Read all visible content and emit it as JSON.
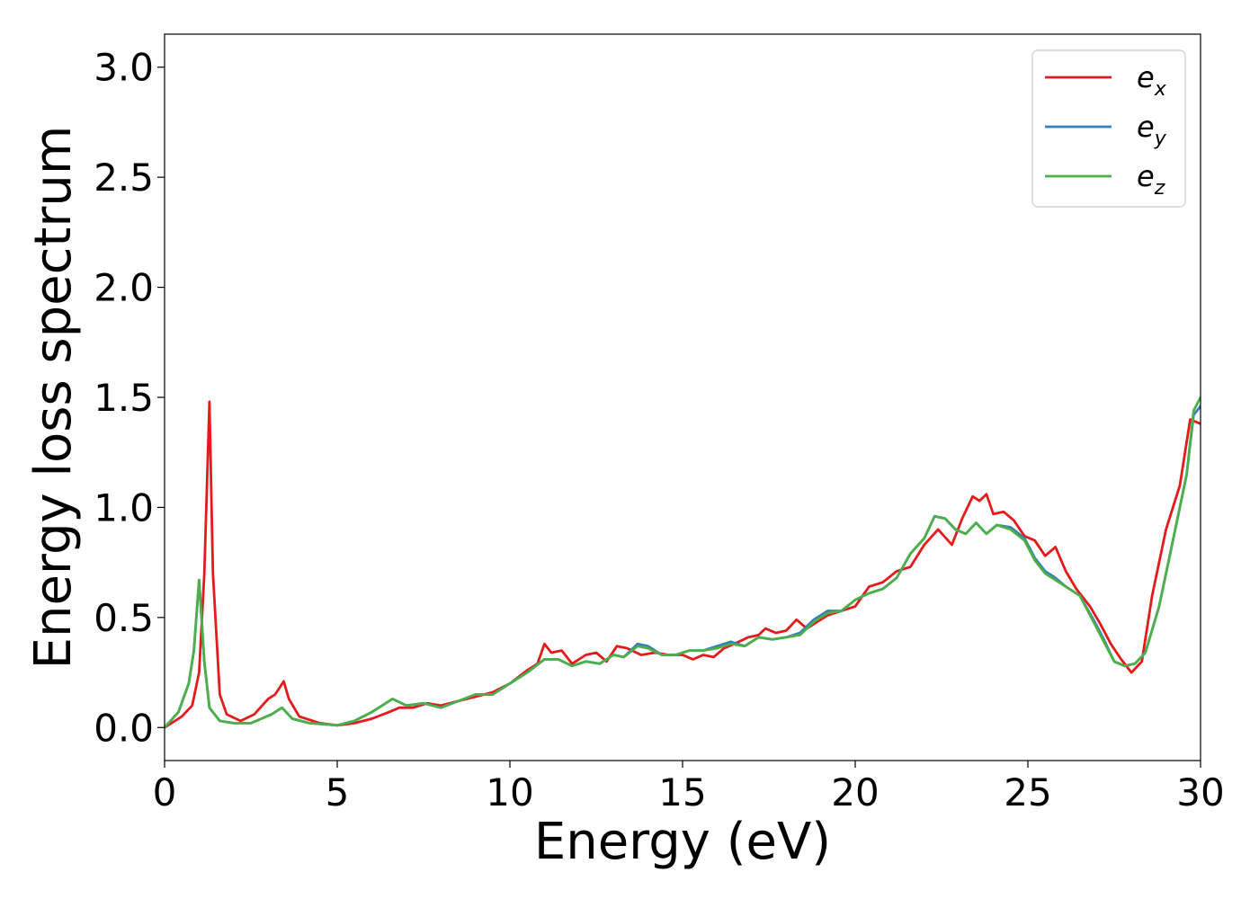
{
  "chart_data": {
    "type": "line",
    "title": "",
    "xlabel": "Energy (eV)",
    "ylabel": "Energy loss spectrum",
    "xlim": [
      0,
      30
    ],
    "ylim": [
      -0.15,
      3.15
    ],
    "xticks": [
      0,
      5,
      10,
      15,
      20,
      25,
      30
    ],
    "xtick_labels": [
      "0",
      "5",
      "10",
      "15",
      "20",
      "25",
      "30"
    ],
    "yticks": [
      0.0,
      0.5,
      1.0,
      1.5,
      2.0,
      2.5,
      3.0
    ],
    "ytick_labels": [
      "0.0",
      "0.5",
      "1.0",
      "1.5",
      "2.0",
      "2.5",
      "3.0"
    ],
    "grid": false,
    "legend_position": "top-right",
    "series": [
      {
        "name": "e_x",
        "legend_base": "e",
        "legend_sub": "x",
        "color": "#e41a1c",
        "points": [
          [
            0,
            0.0
          ],
          [
            0.5,
            0.05
          ],
          [
            0.8,
            0.1
          ],
          [
            1.0,
            0.25
          ],
          [
            1.15,
            0.7
          ],
          [
            1.3,
            1.48
          ],
          [
            1.4,
            0.7
          ],
          [
            1.6,
            0.15
          ],
          [
            1.8,
            0.06
          ],
          [
            2.2,
            0.03
          ],
          [
            2.6,
            0.06
          ],
          [
            3.0,
            0.13
          ],
          [
            3.2,
            0.15
          ],
          [
            3.45,
            0.21
          ],
          [
            3.6,
            0.13
          ],
          [
            3.9,
            0.05
          ],
          [
            4.5,
            0.02
          ],
          [
            5.0,
            0.01
          ],
          [
            5.5,
            0.02
          ],
          [
            6.0,
            0.04
          ],
          [
            6.5,
            0.07
          ],
          [
            6.8,
            0.09
          ],
          [
            7.2,
            0.09
          ],
          [
            7.6,
            0.11
          ],
          [
            8.0,
            0.1
          ],
          [
            8.5,
            0.12
          ],
          [
            9.0,
            0.14
          ],
          [
            9.5,
            0.16
          ],
          [
            10.0,
            0.2
          ],
          [
            10.5,
            0.26
          ],
          [
            10.8,
            0.29
          ],
          [
            11.0,
            0.38
          ],
          [
            11.2,
            0.34
          ],
          [
            11.5,
            0.35
          ],
          [
            11.8,
            0.29
          ],
          [
            12.2,
            0.33
          ],
          [
            12.5,
            0.34
          ],
          [
            12.8,
            0.3
          ],
          [
            13.1,
            0.37
          ],
          [
            13.4,
            0.36
          ],
          [
            13.8,
            0.33
          ],
          [
            14.2,
            0.34
          ],
          [
            14.6,
            0.33
          ],
          [
            15.0,
            0.33
          ],
          [
            15.3,
            0.31
          ],
          [
            15.6,
            0.33
          ],
          [
            15.9,
            0.32
          ],
          [
            16.2,
            0.36
          ],
          [
            16.5,
            0.38
          ],
          [
            16.9,
            0.41
          ],
          [
            17.2,
            0.42
          ],
          [
            17.4,
            0.45
          ],
          [
            17.7,
            0.43
          ],
          [
            18.0,
            0.44
          ],
          [
            18.3,
            0.49
          ],
          [
            18.6,
            0.45
          ],
          [
            18.9,
            0.48
          ],
          [
            19.2,
            0.51
          ],
          [
            19.6,
            0.53
          ],
          [
            20.0,
            0.55
          ],
          [
            20.4,
            0.64
          ],
          [
            20.8,
            0.66
          ],
          [
            21.2,
            0.71
          ],
          [
            21.6,
            0.73
          ],
          [
            22.0,
            0.83
          ],
          [
            22.4,
            0.9
          ],
          [
            22.8,
            0.83
          ],
          [
            23.1,
            0.95
          ],
          [
            23.4,
            1.05
          ],
          [
            23.6,
            1.03
          ],
          [
            23.8,
            1.06
          ],
          [
            24.0,
            0.97
          ],
          [
            24.3,
            0.98
          ],
          [
            24.6,
            0.94
          ],
          [
            24.9,
            0.87
          ],
          [
            25.2,
            0.85
          ],
          [
            25.5,
            0.78
          ],
          [
            25.8,
            0.82
          ],
          [
            26.1,
            0.71
          ],
          [
            26.4,
            0.63
          ],
          [
            26.8,
            0.55
          ],
          [
            27.1,
            0.47
          ],
          [
            27.4,
            0.38
          ],
          [
            27.7,
            0.31
          ],
          [
            28.0,
            0.25
          ],
          [
            28.3,
            0.3
          ],
          [
            28.6,
            0.6
          ],
          [
            29.0,
            0.9
          ],
          [
            29.4,
            1.1
          ],
          [
            29.7,
            1.4
          ],
          [
            30.0,
            1.38
          ]
        ]
      },
      {
        "name": "e_y",
        "legend_base": "e",
        "legend_sub": "y",
        "color": "#377eb8",
        "points": [
          [
            0,
            0.0
          ],
          [
            0.4,
            0.07
          ],
          [
            0.7,
            0.2
          ],
          [
            0.85,
            0.35
          ],
          [
            1.0,
            0.67
          ],
          [
            1.15,
            0.3
          ],
          [
            1.3,
            0.09
          ],
          [
            1.6,
            0.03
          ],
          [
            2.0,
            0.02
          ],
          [
            2.5,
            0.02
          ],
          [
            2.8,
            0.04
          ],
          [
            3.1,
            0.06
          ],
          [
            3.4,
            0.09
          ],
          [
            3.7,
            0.04
          ],
          [
            4.2,
            0.02
          ],
          [
            5.0,
            0.01
          ],
          [
            5.5,
            0.03
          ],
          [
            6.0,
            0.07
          ],
          [
            6.3,
            0.1
          ],
          [
            6.6,
            0.13
          ],
          [
            7.0,
            0.1
          ],
          [
            7.5,
            0.11
          ],
          [
            8.0,
            0.09
          ],
          [
            8.5,
            0.12
          ],
          [
            9.0,
            0.15
          ],
          [
            9.5,
            0.15
          ],
          [
            10.0,
            0.2
          ],
          [
            10.5,
            0.25
          ],
          [
            11.0,
            0.31
          ],
          [
            11.4,
            0.31
          ],
          [
            11.8,
            0.28
          ],
          [
            12.2,
            0.3
          ],
          [
            12.6,
            0.29
          ],
          [
            13.0,
            0.33
          ],
          [
            13.3,
            0.32
          ],
          [
            13.7,
            0.38
          ],
          [
            14.0,
            0.37
          ],
          [
            14.4,
            0.33
          ],
          [
            14.8,
            0.33
          ],
          [
            15.2,
            0.35
          ],
          [
            15.6,
            0.35
          ],
          [
            16.0,
            0.37
          ],
          [
            16.4,
            0.39
          ],
          [
            16.8,
            0.37
          ],
          [
            17.2,
            0.41
          ],
          [
            17.6,
            0.4
          ],
          [
            18.0,
            0.41
          ],
          [
            18.4,
            0.43
          ],
          [
            18.8,
            0.49
          ],
          [
            19.2,
            0.53
          ],
          [
            19.6,
            0.53
          ],
          [
            20.0,
            0.58
          ],
          [
            20.4,
            0.61
          ],
          [
            20.8,
            0.63
          ],
          [
            21.2,
            0.68
          ],
          [
            21.6,
            0.79
          ],
          [
            22.0,
            0.86
          ],
          [
            22.3,
            0.96
          ],
          [
            22.6,
            0.95
          ],
          [
            22.9,
            0.9
          ],
          [
            23.2,
            0.88
          ],
          [
            23.5,
            0.93
          ],
          [
            23.8,
            0.88
          ],
          [
            24.1,
            0.92
          ],
          [
            24.5,
            0.91
          ],
          [
            24.9,
            0.86
          ],
          [
            25.2,
            0.77
          ],
          [
            25.5,
            0.71
          ],
          [
            25.8,
            0.68
          ],
          [
            26.1,
            0.64
          ],
          [
            26.5,
            0.6
          ],
          [
            26.9,
            0.49
          ],
          [
            27.2,
            0.4
          ],
          [
            27.5,
            0.3
          ],
          [
            27.8,
            0.28
          ],
          [
            28.1,
            0.29
          ],
          [
            28.4,
            0.34
          ],
          [
            28.8,
            0.55
          ],
          [
            29.2,
            0.85
          ],
          [
            29.6,
            1.15
          ],
          [
            29.8,
            1.42
          ],
          [
            30.0,
            1.46
          ]
        ]
      },
      {
        "name": "e_z",
        "legend_base": "e",
        "legend_sub": "z",
        "color": "#4daf4a",
        "points": [
          [
            0,
            0.0
          ],
          [
            0.4,
            0.07
          ],
          [
            0.7,
            0.2
          ],
          [
            0.85,
            0.35
          ],
          [
            1.0,
            0.67
          ],
          [
            1.15,
            0.3
          ],
          [
            1.3,
            0.09
          ],
          [
            1.6,
            0.03
          ],
          [
            2.0,
            0.02
          ],
          [
            2.5,
            0.02
          ],
          [
            2.8,
            0.04
          ],
          [
            3.1,
            0.06
          ],
          [
            3.4,
            0.09
          ],
          [
            3.7,
            0.04
          ],
          [
            4.2,
            0.02
          ],
          [
            5.0,
            0.01
          ],
          [
            5.5,
            0.03
          ],
          [
            6.0,
            0.07
          ],
          [
            6.3,
            0.1
          ],
          [
            6.6,
            0.13
          ],
          [
            7.0,
            0.1
          ],
          [
            7.5,
            0.11
          ],
          [
            8.0,
            0.09
          ],
          [
            8.5,
            0.12
          ],
          [
            9.0,
            0.15
          ],
          [
            9.5,
            0.15
          ],
          [
            10.0,
            0.2
          ],
          [
            10.5,
            0.25
          ],
          [
            11.0,
            0.31
          ],
          [
            11.4,
            0.31
          ],
          [
            11.8,
            0.28
          ],
          [
            12.2,
            0.3
          ],
          [
            12.6,
            0.29
          ],
          [
            13.0,
            0.33
          ],
          [
            13.3,
            0.32
          ],
          [
            13.7,
            0.37
          ],
          [
            14.0,
            0.36
          ],
          [
            14.4,
            0.33
          ],
          [
            14.8,
            0.33
          ],
          [
            15.2,
            0.35
          ],
          [
            15.6,
            0.35
          ],
          [
            16.0,
            0.36
          ],
          [
            16.4,
            0.38
          ],
          [
            16.8,
            0.37
          ],
          [
            17.2,
            0.41
          ],
          [
            17.6,
            0.4
          ],
          [
            18.0,
            0.41
          ],
          [
            18.4,
            0.42
          ],
          [
            18.8,
            0.48
          ],
          [
            19.2,
            0.52
          ],
          [
            19.6,
            0.53
          ],
          [
            20.0,
            0.58
          ],
          [
            20.4,
            0.61
          ],
          [
            20.8,
            0.63
          ],
          [
            21.2,
            0.68
          ],
          [
            21.6,
            0.79
          ],
          [
            22.0,
            0.86
          ],
          [
            22.3,
            0.96
          ],
          [
            22.6,
            0.95
          ],
          [
            22.9,
            0.9
          ],
          [
            23.2,
            0.88
          ],
          [
            23.5,
            0.93
          ],
          [
            23.8,
            0.88
          ],
          [
            24.1,
            0.92
          ],
          [
            24.5,
            0.9
          ],
          [
            24.9,
            0.85
          ],
          [
            25.2,
            0.76
          ],
          [
            25.5,
            0.7
          ],
          [
            25.8,
            0.67
          ],
          [
            26.1,
            0.64
          ],
          [
            26.5,
            0.6
          ],
          [
            26.9,
            0.48
          ],
          [
            27.2,
            0.39
          ],
          [
            27.5,
            0.3
          ],
          [
            27.8,
            0.28
          ],
          [
            28.1,
            0.29
          ],
          [
            28.4,
            0.34
          ],
          [
            28.8,
            0.55
          ],
          [
            29.2,
            0.85
          ],
          [
            29.6,
            1.15
          ],
          [
            29.8,
            1.44
          ],
          [
            30.0,
            1.5
          ]
        ]
      }
    ]
  }
}
